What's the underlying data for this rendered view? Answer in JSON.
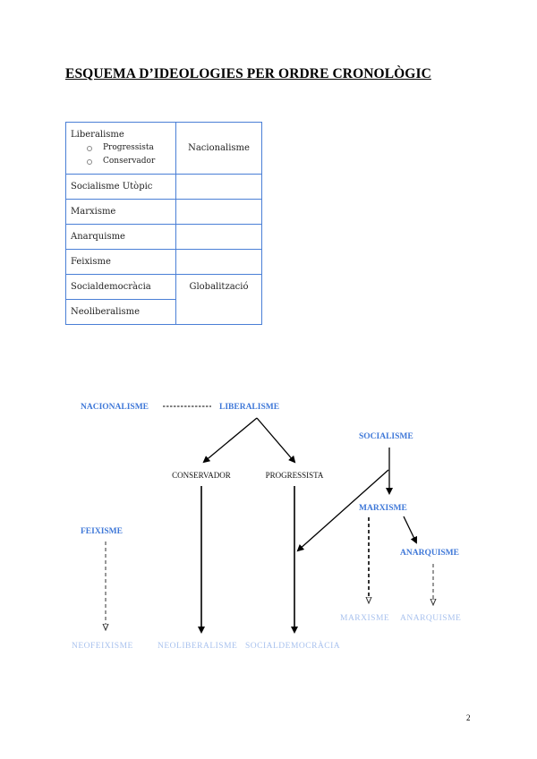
{
  "title": "ESQUEMA D’IDEOLOGIES PER ORDRE CRONOLÒGIC",
  "table": {
    "rows": [
      {
        "left": "Liberalisme",
        "subitems": [
          "Progressista",
          "Conservador"
        ],
        "right": "Nacionalisme"
      },
      {
        "left": "Socialisme Utòpic",
        "right": ""
      },
      {
        "left": "Marxisme",
        "right": ""
      },
      {
        "left": "Anarquisme",
        "right": ""
      },
      {
        "left": "Feixisme",
        "right": ""
      },
      {
        "left": "Socialdemocràcia",
        "right": "Globalització"
      },
      {
        "left": "Neoliberalisme"
      }
    ]
  },
  "diagram": {
    "nacionalisme": "NACIONALISME",
    "liberalisme": "LIBERALISME",
    "conservador": "CONSERVADOR",
    "progressista": "PROGRESSISTA",
    "socialisme": "SOCIALISME",
    "marxisme": "MARXISME",
    "anarquisme": "ANARQUISME",
    "feixisme": "FEIXISME",
    "marxisme_neo": "MARXISME",
    "anarquisme_neo": "ANARQUISME",
    "neofeixisme": "NEOFEIXISME",
    "neoliberalisme": "NEOLIBERALISME",
    "socialdemocracia": "SOCIALDEMOCRÀCIA"
  },
  "colors": {
    "heading_blue": "#3f78d8",
    "light_blue": "#a9c2ee",
    "table_border": "#4a7fd6"
  },
  "page_number": "2"
}
